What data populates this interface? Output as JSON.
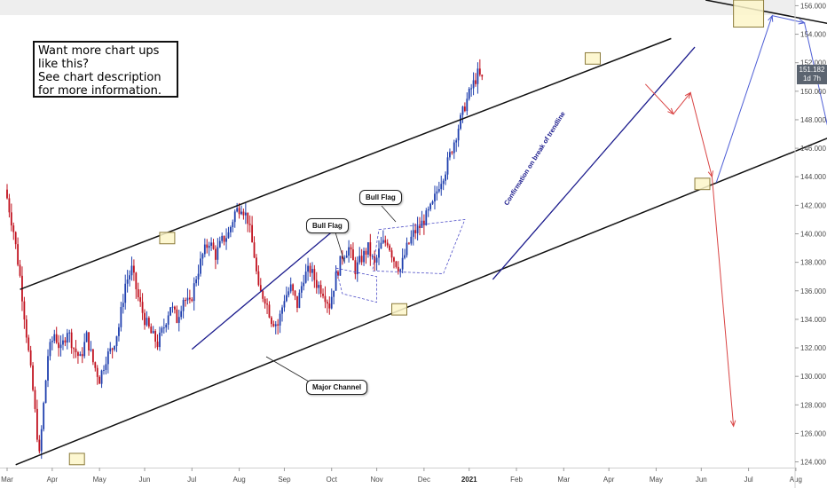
{
  "info_box": {
    "lines": [
      "Want more chart ups",
      "like this?",
      "See chart description",
      "for more information."
    ]
  },
  "labels": {
    "bull_flag_1": "Bull Flag",
    "bull_flag_2": "Bull Flag",
    "major_channel": "Major Channel",
    "confirmation": "Confirmation on break of trendline"
  },
  "price_badge": {
    "price": "151.182",
    "timeframe": "1d 7h"
  },
  "colors": {
    "up": "#1f3fae",
    "down": "#c1121f",
    "channel": "#111111",
    "trendline": "#1a1a8c",
    "forecast_blue": "#4f5fd6",
    "forecast_red": "#d94444",
    "box_fill": "#fdf6c9",
    "box_stroke": "#8a7a3a"
  },
  "chart_data": {
    "type": "candlestick",
    "x_axis": {
      "ticks": [
        "Mar",
        "Apr",
        "May",
        "Jun",
        "Jul",
        "Aug",
        "Sep",
        "Oct",
        "Nov",
        "Dec",
        "2021",
        "Feb",
        "Mar",
        "Apr",
        "May",
        "Jun",
        "Jul",
        "Aug"
      ],
      "tick_index": [
        0,
        21,
        43,
        64,
        86,
        108,
        129,
        151,
        172,
        194,
        215,
        237,
        259,
        280,
        302,
        323,
        345,
        367
      ]
    },
    "y_axis": {
      "ticks": [
        "124.000",
        "126.000",
        "128.000",
        "130.000",
        "132.000",
        "134.000",
        "136.000",
        "138.000",
        "140.000",
        "142.000",
        "144.000",
        "146.000",
        "148.000",
        "150.000",
        "152.000",
        "154.000",
        "156.000"
      ],
      "range": [
        123.6,
        156.4
      ]
    },
    "anchors": [
      [
        0,
        142.5
      ],
      [
        3,
        140.2
      ],
      [
        6,
        137.0
      ],
      [
        9,
        133.0
      ],
      [
        12,
        129.0
      ],
      [
        15,
        124.4
      ],
      [
        17,
        128.0
      ],
      [
        19,
        131.5
      ],
      [
        22,
        133.0
      ],
      [
        25,
        131.8
      ],
      [
        28,
        133.3
      ],
      [
        31,
        132.0
      ],
      [
        34,
        131.2
      ],
      [
        37,
        132.8
      ],
      [
        40,
        131.0
      ],
      [
        43,
        129.8
      ],
      [
        46,
        131.3
      ],
      [
        49,
        132.0
      ],
      [
        52,
        133.5
      ],
      [
        55,
        136.5
      ],
      [
        58,
        137.5
      ],
      [
        61,
        135.5
      ],
      [
        64,
        134.0
      ],
      [
        67,
        133.0
      ],
      [
        70,
        132.3
      ],
      [
        73,
        133.5
      ],
      [
        76,
        135.0
      ],
      [
        79,
        134.0
      ],
      [
        82,
        135.5
      ],
      [
        85,
        135.0
      ],
      [
        88,
        137.0
      ],
      [
        91,
        138.5
      ],
      [
        94,
        139.5
      ],
      [
        97,
        138.5
      ],
      [
        100,
        139.5
      ],
      [
        103,
        140.0
      ],
      [
        106,
        141.5
      ],
      [
        109,
        142.0
      ],
      [
        112,
        141.0
      ],
      [
        115,
        138.5
      ],
      [
        117,
        136.0
      ],
      [
        120,
        135.5
      ],
      [
        123,
        134.0
      ],
      [
        126,
        133.6
      ],
      [
        129,
        135.5
      ],
      [
        132,
        136.2
      ],
      [
        135,
        135.0
      ],
      [
        138,
        137.0
      ],
      [
        141,
        137.5
      ],
      [
        144,
        136.5
      ],
      [
        147,
        136.0
      ],
      [
        150,
        135.0
      ],
      [
        153,
        137.0
      ],
      [
        156,
        138.5
      ],
      [
        159,
        139.0
      ],
      [
        162,
        137.5
      ],
      [
        165,
        138.3
      ],
      [
        168,
        139.0
      ],
      [
        171,
        137.8
      ],
      [
        174,
        139.2
      ],
      [
        177,
        139.5
      ],
      [
        180,
        138.2
      ],
      [
        183,
        137.5
      ],
      [
        186,
        139.0
      ],
      [
        189,
        140.0
      ],
      [
        192,
        140.5
      ],
      [
        195,
        141.2
      ],
      [
        198,
        142.0
      ],
      [
        201,
        143.5
      ],
      [
        204,
        144.5
      ],
      [
        207,
        146.0
      ],
      [
        210,
        147.5
      ],
      [
        213,
        149.0
      ],
      [
        216,
        150.2
      ],
      [
        219,
        151.2
      ],
      [
        221,
        150.8
      ]
    ],
    "channel_lines": [
      {
        "name": "upper",
        "points": [
          [
            6,
            136.1
          ],
          [
            309,
            153.7
          ]
        ],
        "style": "solid",
        "width": 1.5
      },
      {
        "name": "lower",
        "points": [
          [
            4,
            123.8
          ],
          [
            408,
            148.3
          ]
        ],
        "style": "solid",
        "width": 1.5
      },
      {
        "name": "descending",
        "points": [
          [
            325,
            156.4
          ],
          [
            408,
            154.0
          ]
        ],
        "style": "solid",
        "width": 1.5
      }
    ],
    "trendlines": [
      {
        "name": "pullback",
        "points": [
          [
            86,
            131.9
          ],
          [
            158,
            141.0
          ]
        ]
      },
      {
        "name": "confirmation",
        "points": [
          [
            226,
            136.8
          ],
          [
            320,
            153.1
          ]
        ]
      }
    ],
    "forecast_paths": [
      {
        "color": "blue",
        "points": [
          [
            330,
            143.6
          ],
          [
            356,
            155.3
          ],
          [
            371,
            154.8
          ],
          [
            412,
            127.2
          ]
        ]
      },
      {
        "color": "red",
        "points": [
          [
            297,
            150.5
          ],
          [
            310,
            148.4
          ],
          [
            318,
            149.9
          ],
          [
            328,
            144.0
          ],
          [
            338,
            126.5
          ]
        ]
      }
    ],
    "boxes": [
      {
        "x": [
          29,
          36
        ],
        "y": [
          123.8,
          124.6
        ]
      },
      {
        "x": [
          71,
          78
        ],
        "y": [
          139.3,
          140.1
        ]
      },
      {
        "x": [
          179,
          186
        ],
        "y": [
          134.3,
          135.1
        ]
      },
      {
        "x": [
          269,
          276
        ],
        "y": [
          151.9,
          152.7
        ]
      },
      {
        "x": [
          320,
          327
        ],
        "y": [
          143.1,
          143.9
        ]
      },
      {
        "x": [
          338,
          352
        ],
        "y": [
          154.5,
          156.4
        ]
      }
    ]
  }
}
